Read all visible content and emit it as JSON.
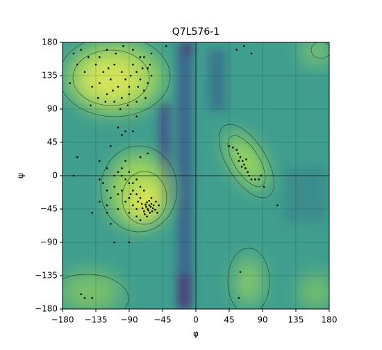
{
  "chart_data": {
    "type": "scatter",
    "title": "Q7L576-1",
    "x_label": "φ",
    "y_label": "ψ",
    "color": "#000000",
    "grid": true,
    "xlim": [
      -180,
      180
    ],
    "ylim": [
      -180,
      180
    ],
    "xticks": [
      {
        "value": -180,
        "label": "−180"
      },
      {
        "value": -135,
        "label": "−135"
      },
      {
        "value": -90,
        "label": "−90"
      },
      {
        "value": -45,
        "label": "−45"
      },
      0,
      45,
      90,
      135,
      180
    ],
    "yticks": [
      {
        "value": -180,
        "label": "−180"
      },
      {
        "value": -135,
        "label": "−135"
      },
      {
        "value": -90,
        "label": "−90"
      },
      {
        "value": -45,
        "label": "−45"
      },
      0,
      45,
      90,
      135,
      180
    ],
    "x": [
      -130,
      -120,
      -110,
      -100,
      -95,
      -90,
      -85,
      -80,
      -75,
      -70,
      -65,
      -60,
      -105,
      -115,
      -125,
      -135,
      -140,
      -145,
      -150,
      -155,
      -120,
      -110,
      -100,
      -90,
      -80,
      -70,
      -65,
      -75,
      -85,
      -60,
      -130,
      -118,
      -108,
      -98,
      -88,
      -78,
      -72,
      -68,
      -62,
      -92,
      -102,
      -112,
      -122,
      -132,
      -142,
      -160,
      -170,
      -165,
      -95,
      -100,
      -105,
      -115,
      -130,
      -160,
      -75,
      -65,
      -80,
      -85,
      -65,
      -63,
      -67,
      -60,
      -70,
      -62,
      -58,
      -66,
      -64,
      -61,
      -68,
      -72,
      -59,
      -57,
      -69,
      -63,
      -55,
      -73,
      -66,
      -60,
      -75,
      -80,
      -85,
      -90,
      -95,
      -100,
      -105,
      -110,
      -115,
      -120,
      -100,
      -90,
      -85,
      -80,
      -95,
      -105,
      -110,
      -120,
      -125,
      -100,
      -90,
      -80,
      -75,
      -70,
      -85,
      -95,
      -120,
      -105,
      -90,
      -80,
      -75,
      -130,
      -140,
      -115,
      -90,
      -120,
      -130,
      -50,
      -52,
      -54,
      -78,
      -88,
      45,
      50,
      55,
      57,
      60,
      63,
      65,
      67,
      70,
      72,
      75,
      80,
      85,
      58,
      62,
      68,
      88,
      75,
      65,
      55,
      92,
      110,
      60,
      58,
      -150,
      -155,
      -140,
      -40,
      -110,
      -165
    ],
    "y": [
      160,
      170,
      150,
      140,
      130,
      120,
      150,
      140,
      130,
      160,
      145,
      135,
      120,
      130,
      140,
      150,
      120,
      160,
      140,
      170,
      110,
      100,
      105,
      110,
      100,
      115,
      125,
      160,
      170,
      165,
      125,
      145,
      165,
      175,
      135,
      120,
      145,
      105,
      150,
      95,
      90,
      115,
      100,
      105,
      95,
      150,
      125,
      165,
      60,
      55,
      65,
      40,
      20,
      25,
      25,
      30,
      80,
      60,
      -45,
      -40,
      -42,
      -38,
      -48,
      -50,
      -44,
      -36,
      -47,
      -42,
      -39,
      -44,
      -48,
      -40,
      -52,
      -34,
      -46,
      -38,
      -55,
      -30,
      -30,
      -25,
      -20,
      -10,
      -5,
      0,
      5,
      -15,
      -30,
      -40,
      -20,
      -30,
      -40,
      -45,
      -35,
      -25,
      0,
      10,
      -10,
      10,
      5,
      -5,
      -15,
      -20,
      -10,
      20,
      -50,
      -45,
      -50,
      -55,
      -60,
      -35,
      -50,
      -65,
      -90,
      -20,
      -5,
      -40,
      -50,
      -35,
      -35,
      -25,
      40,
      38,
      35,
      30,
      25,
      20,
      15,
      10,
      5,
      0,
      -5,
      -5,
      -5,
      20,
      12,
      22,
      0,
      165,
      175,
      170,
      -15,
      -40,
      -130,
      -165,
      -165,
      -160,
      -165,
      175,
      -90,
      0
    ]
  }
}
